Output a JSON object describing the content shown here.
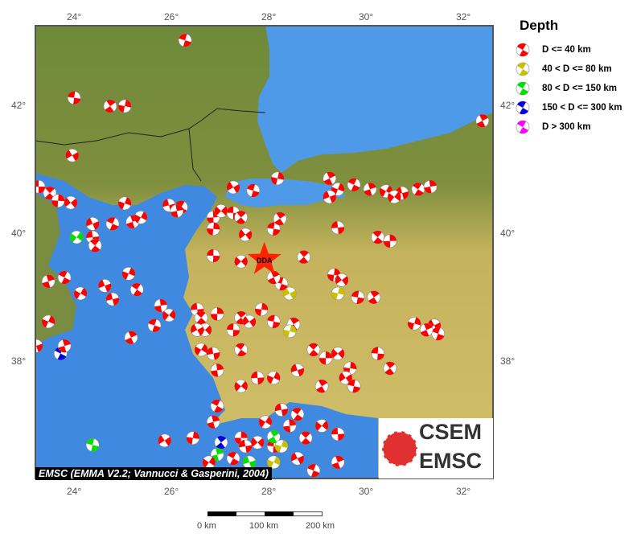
{
  "map": {
    "lon_range": [
      23.2,
      32.6
    ],
    "lat_range": [
      36.1,
      43.3
    ],
    "lon_ticks": [
      "24°",
      "26°",
      "28°",
      "30°",
      "32°"
    ],
    "lat_ticks": [
      "42°",
      "40°",
      "38°"
    ],
    "station": {
      "label": "DDA",
      "lon": 27.88,
      "lat": 39.6,
      "color": "#ff2200"
    },
    "events": [
      [
        23.24,
        40.74,
        1
      ],
      [
        23.47,
        40.64,
        1
      ],
      [
        23.64,
        40.52,
        1
      ],
      [
        23.9,
        40.49,
        1
      ],
      [
        23.97,
        42.13,
        1
      ],
      [
        24.71,
        42.0,
        1
      ],
      [
        25.01,
        42.0,
        1
      ],
      [
        23.93,
        41.23,
        1
      ],
      [
        26.25,
        43.03,
        1
      ],
      [
        32.36,
        41.77,
        1
      ],
      [
        25.01,
        40.48,
        1
      ],
      [
        24.35,
        40.16,
        1
      ],
      [
        24.76,
        40.16,
        1
      ],
      [
        25.17,
        40.19,
        1
      ],
      [
        25.34,
        40.26,
        1
      ],
      [
        25.92,
        40.45,
        1
      ],
      [
        26.17,
        40.42,
        1
      ],
      [
        26.08,
        40.36,
        1
      ],
      [
        24.02,
        39.95,
        3
      ],
      [
        24.35,
        39.95,
        1
      ],
      [
        24.4,
        39.82,
        1
      ],
      [
        26.83,
        40.26,
        1
      ],
      [
        26.99,
        40.36,
        1
      ],
      [
        27.24,
        40.33,
        1
      ],
      [
        27.4,
        40.26,
        1
      ],
      [
        26.83,
        40.08,
        1
      ],
      [
        27.49,
        39.99,
        1
      ],
      [
        28.07,
        40.08,
        1
      ],
      [
        28.2,
        40.24,
        1
      ],
      [
        28.15,
        40.87,
        1
      ],
      [
        27.24,
        40.73,
        1
      ],
      [
        27.65,
        40.68,
        1
      ],
      [
        29.22,
        40.87,
        1
      ],
      [
        29.39,
        40.7,
        1
      ],
      [
        29.22,
        40.58,
        1
      ],
      [
        29.72,
        40.77,
        1
      ],
      [
        30.05,
        40.7,
        1
      ],
      [
        30.38,
        40.67,
        1
      ],
      [
        30.71,
        40.64,
        1
      ],
      [
        31.04,
        40.7,
        1
      ],
      [
        31.29,
        40.74,
        1
      ],
      [
        30.55,
        40.58,
        1
      ],
      [
        29.39,
        40.1,
        1
      ],
      [
        30.21,
        39.95,
        1
      ],
      [
        30.46,
        39.89,
        1
      ],
      [
        27.4,
        39.57,
        1
      ],
      [
        26.83,
        39.66,
        1
      ],
      [
        28.69,
        39.64,
        1
      ],
      [
        29.31,
        39.36,
        1
      ],
      [
        29.47,
        39.28,
        1
      ],
      [
        29.8,
        39.01,
        1
      ],
      [
        30.13,
        39.01,
        1
      ],
      [
        29.39,
        39.07,
        2
      ],
      [
        28.4,
        39.07,
        2
      ],
      [
        28.23,
        39.22,
        1
      ],
      [
        28.07,
        39.32,
        1
      ],
      [
        25.09,
        39.38,
        1
      ],
      [
        24.6,
        39.19,
        1
      ],
      [
        23.77,
        39.32,
        1
      ],
      [
        23.44,
        39.26,
        1
      ],
      [
        24.1,
        39.07,
        1
      ],
      [
        24.76,
        38.98,
        1
      ],
      [
        25.26,
        39.13,
        1
      ],
      [
        25.75,
        38.88,
        1
      ],
      [
        25.92,
        38.73,
        1
      ],
      [
        26.5,
        38.82,
        1
      ],
      [
        26.58,
        38.69,
        1
      ],
      [
        26.91,
        38.75,
        1
      ],
      [
        26.66,
        38.5,
        1
      ],
      [
        27.24,
        38.5,
        1
      ],
      [
        27.4,
        38.69,
        1
      ],
      [
        27.82,
        38.82,
        1
      ],
      [
        27.57,
        38.63,
        1
      ],
      [
        28.07,
        38.63,
        1
      ],
      [
        28.48,
        38.59,
        1
      ],
      [
        28.4,
        38.48,
        2
      ],
      [
        26.5,
        38.5,
        1
      ],
      [
        25.62,
        38.57,
        1
      ],
      [
        25.14,
        38.38,
        1
      ],
      [
        23.44,
        38.63,
        1
      ],
      [
        23.19,
        38.25,
        1
      ],
      [
        23.69,
        38.13,
        4
      ],
      [
        23.77,
        38.25,
        1
      ],
      [
        26.58,
        38.19,
        1
      ],
      [
        26.83,
        38.13,
        1
      ],
      [
        27.4,
        38.19,
        1
      ],
      [
        26.91,
        37.87,
        1
      ],
      [
        27.4,
        37.62,
        1
      ],
      [
        27.74,
        37.75,
        1
      ],
      [
        28.89,
        38.19,
        1
      ],
      [
        29.14,
        38.06,
        1
      ],
      [
        29.39,
        38.13,
        1
      ],
      [
        30.21,
        38.13,
        1
      ],
      [
        30.46,
        37.9,
        1
      ],
      [
        29.64,
        37.9,
        1
      ],
      [
        29.55,
        37.75,
        1
      ],
      [
        29.72,
        37.62,
        1
      ],
      [
        29.06,
        37.62,
        1
      ],
      [
        30.96,
        38.6,
        1
      ],
      [
        31.37,
        38.57,
        1
      ],
      [
        31.45,
        38.44,
        1
      ],
      [
        31.21,
        38.5,
        1
      ],
      [
        28.07,
        37.75,
        1
      ],
      [
        28.56,
        37.87,
        1
      ],
      [
        26.91,
        37.31,
        1
      ],
      [
        26.83,
        37.06,
        1
      ],
      [
        27.9,
        37.06,
        1
      ],
      [
        28.23,
        37.25,
        1
      ],
      [
        28.56,
        37.18,
        1
      ],
      [
        28.4,
        37.0,
        1
      ],
      [
        29.06,
        37.0,
        1
      ],
      [
        29.39,
        36.87,
        1
      ],
      [
        28.73,
        36.81,
        1
      ],
      [
        27.4,
        36.81,
        1
      ],
      [
        27.74,
        36.74,
        1
      ],
      [
        28.07,
        36.68,
        1
      ],
      [
        26.99,
        36.74,
        4
      ],
      [
        26.41,
        36.81,
        1
      ],
      [
        25.83,
        36.77,
        1
      ],
      [
        24.35,
        36.7,
        3
      ],
      [
        28.07,
        36.83,
        3
      ],
      [
        28.23,
        36.68,
        2
      ],
      [
        28.56,
        36.49,
        1
      ],
      [
        28.89,
        36.3,
        1
      ],
      [
        29.39,
        36.43,
        1
      ],
      [
        28.07,
        36.43,
        2
      ],
      [
        27.57,
        36.43,
        3
      ],
      [
        27.24,
        36.49,
        1
      ],
      [
        26.91,
        36.55,
        3
      ],
      [
        26.74,
        36.43,
        1
      ],
      [
        27.49,
        36.68,
        1
      ]
    ]
  },
  "legend": {
    "title": "Depth",
    "items": [
      {
        "label": "D <= 40 km",
        "color": "#ff0000"
      },
      {
        "label": "40 < D <= 80 km",
        "color": "#c8c000"
      },
      {
        "label": "80 < D <= 150 km",
        "color": "#00e000"
      },
      {
        "label": "150 < D <= 300 km",
        "color": "#0000e0"
      },
      {
        "label": "D > 300 km",
        "color": "#ff00ff"
      }
    ]
  },
  "attribution": "EMSC (EMMA V2.2; Vannucci & Gasperini, 2004)",
  "logo": {
    "line1": "CSEM",
    "line2": "EMSC"
  },
  "scale": {
    "labels": [
      "0 km",
      "100 km",
      "200 km"
    ]
  }
}
